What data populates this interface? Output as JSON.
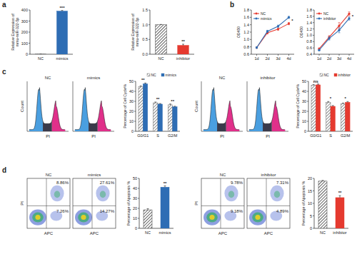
{
  "panel_labels": [
    "a",
    "b",
    "c",
    "d"
  ],
  "chart_data": [
    {
      "type": "bar",
      "y_label": [
        "Relative Expression of",
        "mmu-miR-322-5p"
      ],
      "categories": [
        "NC",
        "mimics"
      ],
      "values": [
        1,
        390
      ],
      "errors": [
        0.05,
        8
      ],
      "colors": [
        "#3a3a3a",
        "#2e6db4"
      ],
      "ylim": [
        0,
        400
      ],
      "yticks": [
        0,
        100,
        200,
        300,
        400
      ],
      "annotations": [
        null,
        "***"
      ]
    },
    {
      "type": "bar",
      "y_label": [
        "Relative Expression of",
        "mmu-miR-322-5p"
      ],
      "categories": [
        "NC",
        "inhibitor"
      ],
      "values": [
        1,
        0.3
      ],
      "errors": [
        0.01,
        0.04
      ],
      "colors": [
        "#3a3a3a",
        "#e53a2f"
      ],
      "ylim": [
        0,
        1.5
      ],
      "yticks": [
        {
          "value": 0,
          "label": "0.0"
        },
        {
          "value": 0.5,
          "label": "0.5"
        },
        {
          "value": 1,
          "label": "1.0"
        },
        {
          "value": 1.5,
          "label": "1.5"
        }
      ],
      "annotations": [
        null,
        "**"
      ]
    },
    {
      "type": "line",
      "y_label": "OD450",
      "categories": [
        "1d",
        "2d",
        "3d",
        "4d"
      ],
      "series": [
        {
          "name": "NC",
          "color": "#e53a2f",
          "values": [
            0.78,
            1.18,
            1.28,
            1.43
          ],
          "errors": [
            0.02,
            0.03,
            0.03,
            0.03
          ]
        },
        {
          "name": "mimics",
          "color": "#2e6db4",
          "values": [
            0.78,
            1.22,
            1.36,
            1.6
          ],
          "errors": [
            0.02,
            0.03,
            0.03,
            0.03
          ]
        }
      ],
      "ylim": [
        0.6,
        1.8
      ],
      "yticks": [
        0.6,
        0.8,
        {
          "value": 1,
          "label": "1.0"
        },
        1.2,
        1.4,
        1.6,
        1.8
      ],
      "legend": "upper left",
      "marker": "circle",
      "annotations": [
        null,
        null,
        null,
        "*"
      ]
    },
    {
      "type": "line",
      "y_label": "OD450",
      "categories": [
        "1d",
        "2d",
        "3d",
        "4d"
      ],
      "series": [
        {
          "name": "NC",
          "color": "#e53a2f",
          "values": [
            0.57,
            0.94,
            1.3,
            1.68
          ],
          "errors": [
            0.03,
            0.05,
            0.1,
            0.06
          ]
        },
        {
          "name": "inhibitor",
          "color": "#2e6db4",
          "values": [
            0.53,
            0.9,
            1.16,
            1.53
          ],
          "errors": [
            0.02,
            0.05,
            0.08,
            0.05
          ]
        }
      ],
      "ylim": [
        0.4,
        1.8
      ],
      "yticks": [
        0.4,
        0.6,
        0.8,
        {
          "value": 1,
          "label": "1.0"
        },
        1.2,
        1.4,
        1.6,
        1.8
      ],
      "legend": "upper left",
      "marker": "circle",
      "annotations": [
        null,
        null,
        null,
        "*"
      ]
    },
    {
      "type": "bar",
      "y_label": "Percentage of Cell Cycle%",
      "categories": [
        "G0/G1",
        "S",
        "G2/M"
      ],
      "series": [
        {
          "name": "NC",
          "color": "#6b6b6b",
          "values": [
            44.5,
            28.5,
            26.5
          ],
          "errors": [
            1,
            0.8,
            0.8
          ]
        },
        {
          "name": "mimics",
          "color": "#2e6db4",
          "values": [
            47.5,
            27.2,
            24.5
          ],
          "errors": [
            0.8,
            0.6,
            0.6
          ]
        }
      ],
      "ylim": [
        0,
        50
      ],
      "yticks": [
        0,
        10,
        20,
        30,
        40,
        50
      ],
      "legend": "upper right",
      "annotations": [
        "**",
        "**",
        "**"
      ]
    },
    {
      "type": "bar",
      "y_label": "Percentage of Cell Cycle%",
      "categories": [
        "G0/G1",
        "S",
        "G2/M"
      ],
      "series": [
        {
          "name": "NC",
          "color": "#6b6b6b",
          "values": [
            46,
            29,
            27.5
          ],
          "errors": [
            0.8,
            0.8,
            0.8
          ]
        },
        {
          "name": "inhibitor",
          "color": "#e53a2f",
          "values": [
            46.5,
            25,
            29
          ],
          "errors": [
            0.8,
            0.8,
            0.8
          ]
        }
      ],
      "ylim": [
        0,
        50
      ],
      "yticks": [
        0,
        10,
        20,
        30,
        40,
        50
      ],
      "legend": "upper right",
      "annotations": [
        "ns",
        "*",
        "*"
      ]
    },
    {
      "type": "bar",
      "y_label": "Percentage of Apoptosis %",
      "categories": [
        "NC",
        "mimics"
      ],
      "values": [
        18.5,
        41.2
      ],
      "errors": [
        1.2,
        1.3
      ],
      "colors": [
        "#3a3a3a",
        "#2e6db4"
      ],
      "ylim": [
        0,
        50
      ],
      "yticks": [
        0,
        10,
        20,
        30,
        40,
        50
      ],
      "annotations": [
        null,
        "**"
      ]
    },
    {
      "type": "bar",
      "y_label": "Percentage of Apoptosis %",
      "categories": [
        "NC",
        "inhibitor"
      ],
      "values": [
        18.9,
        12.3
      ],
      "errors": [
        0.3,
        0.8
      ],
      "colors": [
        "#3a3a3a",
        "#e53a2f"
      ],
      "ylim": [
        0,
        20
      ],
      "yticks": [
        0,
        5,
        10,
        15,
        20
      ],
      "annotations": [
        null,
        "**"
      ]
    }
  ],
  "flow_histograms": [
    {
      "title": "NC",
      "y_label": "Count",
      "x_label": "PI"
    },
    {
      "title": "mimics",
      "x_label": "PI"
    },
    {
      "title": "NC",
      "y_label": "Count",
      "x_label": "PI"
    },
    {
      "title": "inhibitor",
      "x_label": "PI"
    }
  ],
  "flow_scatters": [
    {
      "title": "NC",
      "y_label": "PI",
      "x_label": "APC",
      "upper_right": "8.86%",
      "lower_right": "7.26%"
    },
    {
      "title": "mimics",
      "x_label": "APC",
      "upper_right": "27.61%",
      "lower_right": "14.27%"
    },
    {
      "title": "NC",
      "y_label": "PI",
      "x_label": "APC",
      "upper_right": "9.78%",
      "lower_right": "9.18%"
    },
    {
      "title": "inhibitor",
      "x_label": "APC",
      "upper_right": "7.31%",
      "lower_right": "4.89%"
    }
  ]
}
